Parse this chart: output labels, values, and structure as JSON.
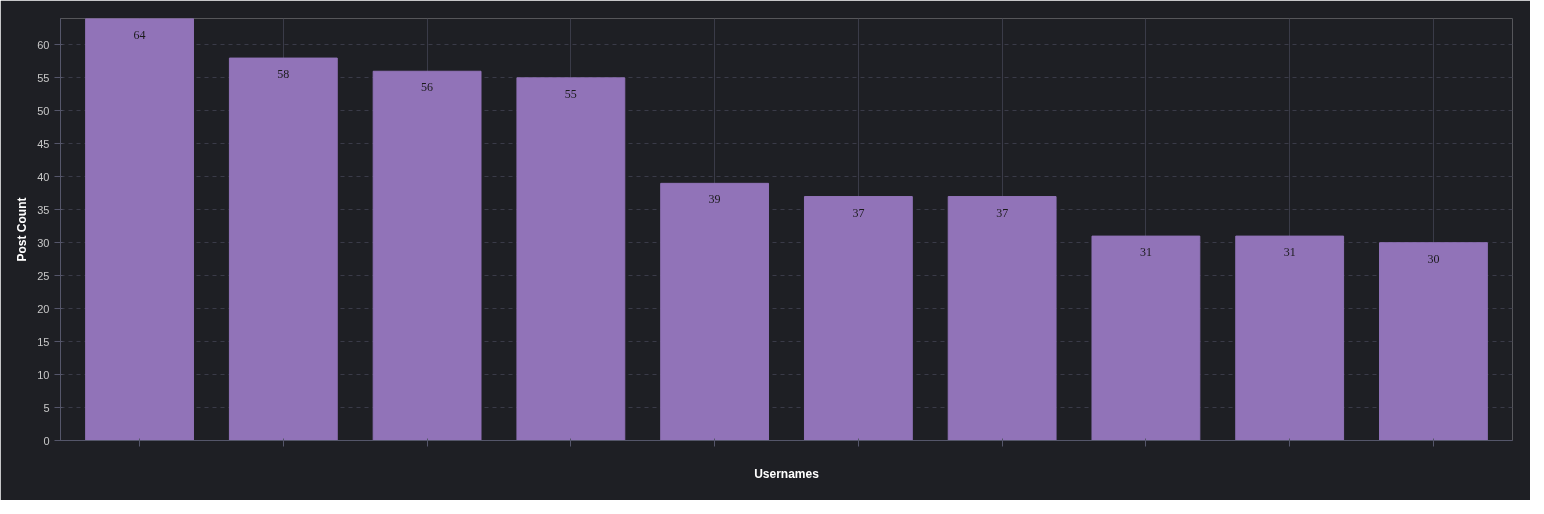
{
  "chart_data": {
    "type": "bar",
    "xlabel": "Usernames",
    "ylabel": "Post Count",
    "categories": [
      null,
      null,
      null,
      null,
      null,
      null,
      null,
      null,
      null,
      null
    ],
    "values": [
      64,
      58,
      56,
      55,
      39,
      37,
      37,
      31,
      31,
      30
    ],
    "color": "#9173b8",
    "ylim": [
      0,
      64
    ],
    "yticks": [
      0,
      5,
      10,
      15,
      20,
      25,
      30,
      35,
      40,
      45,
      50,
      55,
      60
    ],
    "grid": true,
    "data_labels": true
  }
}
